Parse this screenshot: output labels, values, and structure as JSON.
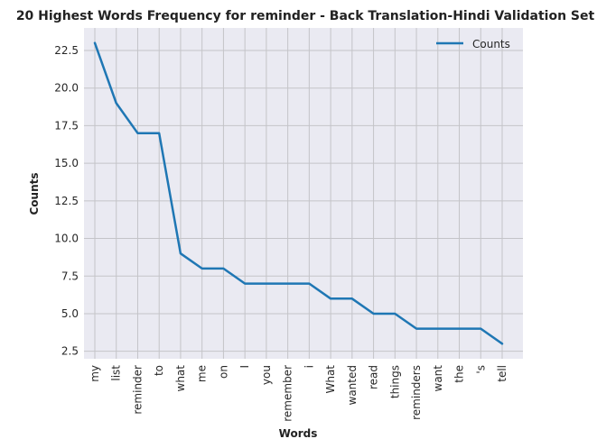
{
  "chart_data": {
    "type": "line",
    "title": "20 Highest Words Frequency for reminder - Back Translation-Hindi Validation Set",
    "xlabel": "Words",
    "ylabel": "Counts",
    "categories": [
      "my",
      "list",
      "reminder",
      "to",
      "what",
      "me",
      "on",
      "I",
      "you",
      "remember",
      "i",
      "What",
      "wanted",
      "read",
      "things",
      "reminders",
      "want",
      "the",
      "'s",
      "tell"
    ],
    "series": [
      {
        "name": "Counts",
        "values": [
          23,
          19,
          17,
          17,
          9,
          8,
          8,
          7,
          7,
          7,
          7,
          6,
          6,
          5,
          5,
          4,
          4,
          4,
          4,
          3
        ]
      }
    ],
    "ylim": [
      2.0,
      24.0
    ],
    "yticks": [
      "2.5",
      "5.0",
      "7.5",
      "10.0",
      "12.5",
      "15.0",
      "17.5",
      "20.0",
      "22.5"
    ],
    "grid": true,
    "legend": "top-right",
    "colors": {
      "line": "#1f77b4",
      "plot_bg": "#eaeaf2",
      "grid": "#c4c4c8"
    }
  }
}
